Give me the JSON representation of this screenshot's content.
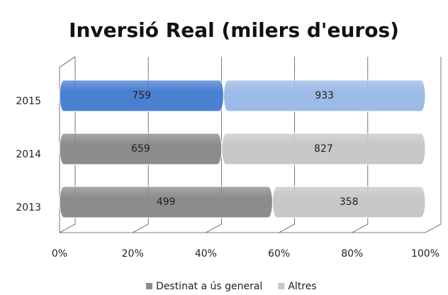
{
  "chart_data": {
    "type": "bar",
    "orientation": "horizontal",
    "stacking": "percent",
    "title": "Inversió Real (milers d'euros)",
    "categories": [
      "2015",
      "2014",
      "2013"
    ],
    "series": [
      {
        "name": "Destinat a ús general",
        "color": "#8c8c8c",
        "colors": [
          "#4a80d0",
          "#8c8c8c",
          "#8c8c8c"
        ],
        "values": [
          759,
          659,
          499
        ]
      },
      {
        "name": "Altres",
        "color": "#c8c8c8",
        "colors": [
          "#9dbbe8",
          "#c8c8c8",
          "#c8c8c8"
        ],
        "values": [
          933,
          827,
          358
        ]
      }
    ],
    "xlim": [
      0,
      100
    ],
    "xticks": [
      {
        "value": 0,
        "label": "0%"
      },
      {
        "value": 20,
        "label": "20%"
      },
      {
        "value": 40,
        "label": "40%"
      },
      {
        "value": 60,
        "label": "60%"
      },
      {
        "value": 80,
        "label": "80%"
      },
      {
        "value": 100,
        "label": "100%"
      }
    ],
    "grid": true,
    "legend": "bottom"
  }
}
